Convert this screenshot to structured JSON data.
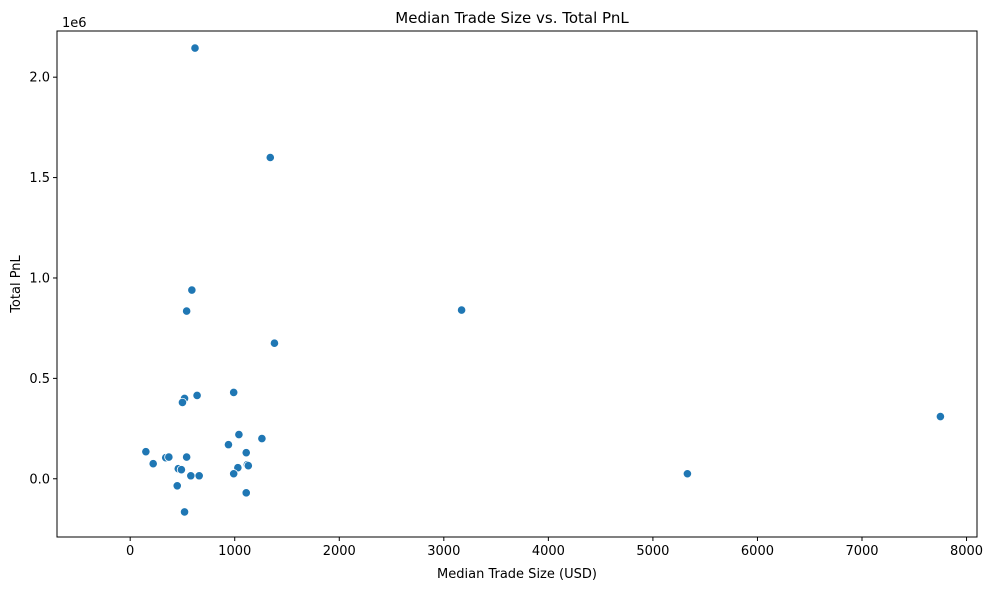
{
  "chart_data": {
    "type": "scatter",
    "title": "Median Trade Size vs. Total PnL",
    "xlabel": "Median Trade Size (USD)",
    "ylabel": "Total PnL",
    "y_offset_label": "1e6",
    "xlim": [
      -700,
      8100
    ],
    "ylim": [
      -290000,
      2230000
    ],
    "xticks": [
      0,
      1000,
      2000,
      3000,
      4000,
      5000,
      6000,
      7000,
      8000
    ],
    "xtick_labels": [
      "0",
      "1000",
      "2000",
      "3000",
      "4000",
      "5000",
      "6000",
      "7000",
      "8000"
    ],
    "yticks": [
      0,
      500000,
      1000000,
      1500000,
      2000000
    ],
    "ytick_labels": [
      "0.0",
      "0.5",
      "1.0",
      "1.5",
      "2.0"
    ],
    "grid": false,
    "marker_color": "#1f77b4",
    "points": [
      {
        "x": 620,
        "y": 2145000
      },
      {
        "x": 1340,
        "y": 1600000
      },
      {
        "x": 590,
        "y": 940000
      },
      {
        "x": 540,
        "y": 835000
      },
      {
        "x": 3170,
        "y": 840000
      },
      {
        "x": 1380,
        "y": 675000
      },
      {
        "x": 990,
        "y": 430000
      },
      {
        "x": 640,
        "y": 415000
      },
      {
        "x": 520,
        "y": 400000
      },
      {
        "x": 500,
        "y": 380000
      },
      {
        "x": 7750,
        "y": 310000
      },
      {
        "x": 1040,
        "y": 220000
      },
      {
        "x": 1260,
        "y": 200000
      },
      {
        "x": 940,
        "y": 170000
      },
      {
        "x": 150,
        "y": 135000
      },
      {
        "x": 1110,
        "y": 130000
      },
      {
        "x": 340,
        "y": 105000
      },
      {
        "x": 370,
        "y": 108000
      },
      {
        "x": 540,
        "y": 108000
      },
      {
        "x": 220,
        "y": 75000
      },
      {
        "x": 1120,
        "y": 70000
      },
      {
        "x": 1130,
        "y": 65000
      },
      {
        "x": 1030,
        "y": 55000
      },
      {
        "x": 460,
        "y": 50000
      },
      {
        "x": 490,
        "y": 45000
      },
      {
        "x": 990,
        "y": 25000
      },
      {
        "x": 5330,
        "y": 25000
      },
      {
        "x": 580,
        "y": 15000
      },
      {
        "x": 660,
        "y": 15000
      },
      {
        "x": 450,
        "y": -35000
      },
      {
        "x": 1110,
        "y": -70000
      },
      {
        "x": 520,
        "y": -165000
      }
    ]
  }
}
